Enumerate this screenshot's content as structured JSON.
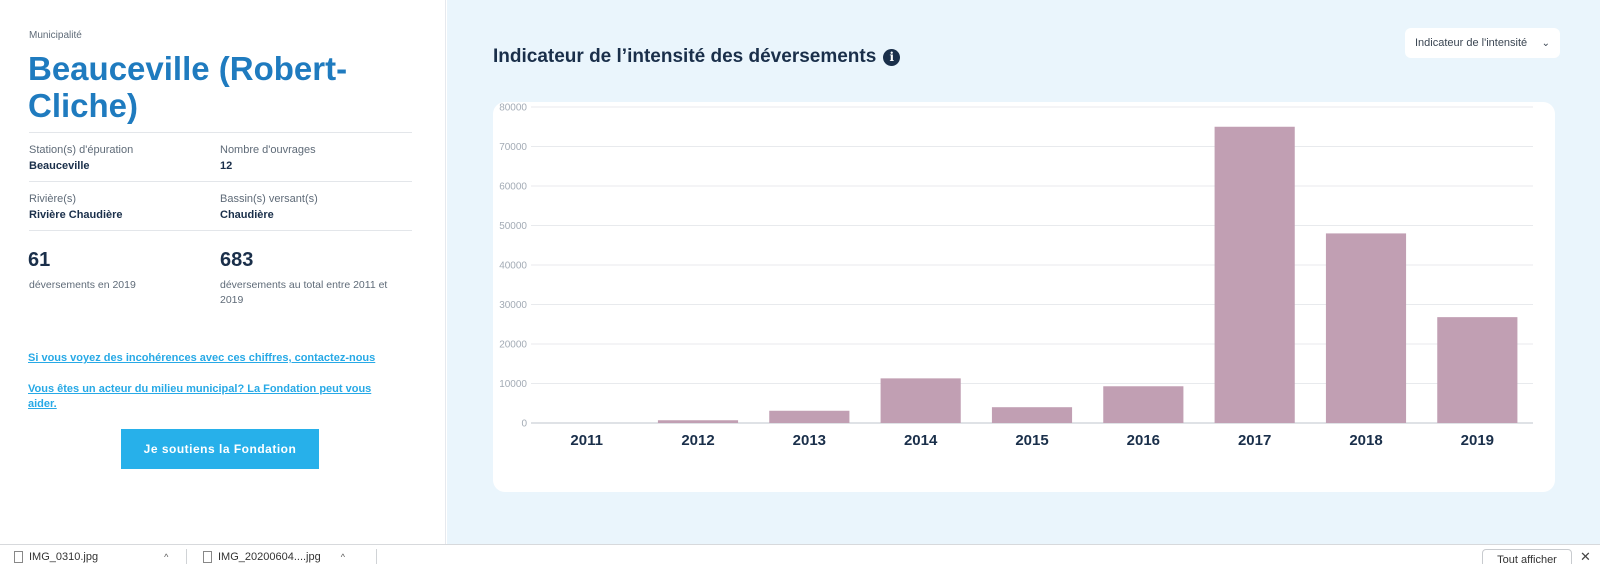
{
  "left": {
    "municipality_label": "Municipalité",
    "municipality_name": "Beauceville (Robert-Cliche)",
    "station_label": "Station(s) d'épuration",
    "station_value": "Beauceville",
    "works_label": "Nombre d'ouvrages",
    "works_value": "12",
    "river_label": "Rivière(s)",
    "river_value": "Rivière Chaudière",
    "basin_label": "Bassin(s) versant(s)",
    "basin_value": "Chaudière",
    "overflows_year_num": "61",
    "overflows_year_desc": "déversements en 2019",
    "overflows_total_num": "683",
    "overflows_total_desc": "déversements au total entre 2011 et 2019",
    "link_contact": "Si vous voyez des incohérences avec ces chiffres, contactez-nous",
    "link_help": "Vous êtes un acteur du milieu municipal? La Fondation peut vous aider.",
    "cta_label": "Je soutiens la Fondation"
  },
  "chart_panel": {
    "title": "Indicateur de l’intensité des déversements",
    "info_glyph": "i",
    "dropdown_value": "Indicateur de l'intensité",
    "dropdown_chevron": "⌄"
  },
  "chart_data": {
    "type": "bar",
    "categories": [
      "2011",
      "2012",
      "2013",
      "2014",
      "2015",
      "2016",
      "2017",
      "2018",
      "2019"
    ],
    "values": [
      0,
      700,
      3100,
      11300,
      4000,
      9300,
      75000,
      48000,
      26800
    ],
    "ylim": [
      0,
      80000
    ],
    "yticks": [
      "0",
      "10000",
      "20000",
      "30000",
      "40000",
      "50000",
      "60000",
      "70000",
      "80000"
    ],
    "grid": true,
    "bar_color": "#c19fb3"
  },
  "download_bar": {
    "file1": "IMG_0310.jpg",
    "file2": "IMG_20200604....jpg",
    "caret": "^",
    "show_all": "Tout afficher",
    "close": "✕"
  }
}
